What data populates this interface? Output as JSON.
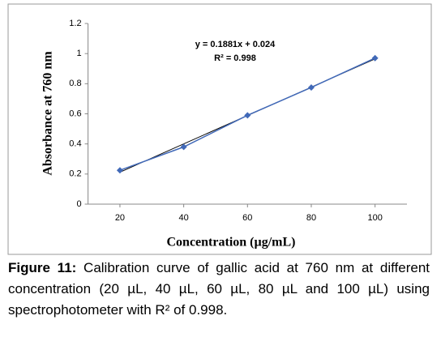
{
  "chart_data": {
    "type": "line",
    "x": [
      20,
      40,
      60,
      80,
      100
    ],
    "series": [
      {
        "color": "#4169b8",
        "values": [
          0.225,
          0.38,
          0.59,
          0.775,
          0.97
        ]
      }
    ],
    "trendline": {
      "x": [
        20,
        100
      ],
      "values": [
        0.212,
        0.965
      ],
      "color": "#000000"
    },
    "annotations": [
      "y = 0.1881x + 0.024",
      "R² = 0.998"
    ],
    "xlabel": "Concentration (µg/mL)",
    "ylabel": "Absorbance at 760 nm",
    "xlim": [
      10,
      110
    ],
    "xticks": [
      20,
      40,
      60,
      80,
      100
    ],
    "ylim": [
      0,
      1.2
    ],
    "yticks": [
      0,
      0.2,
      0.4,
      0.6,
      0.8,
      1,
      1.2
    ],
    "grid": false
  },
  "caption": {
    "label": "Figure 11:",
    "text": " Calibration curve of gallic acid at 760 nm at different concentration (20 µL, 40 µL, 60 µL, 80 µL and 100 µL) using spectrophotometer with R² of 0.998."
  }
}
